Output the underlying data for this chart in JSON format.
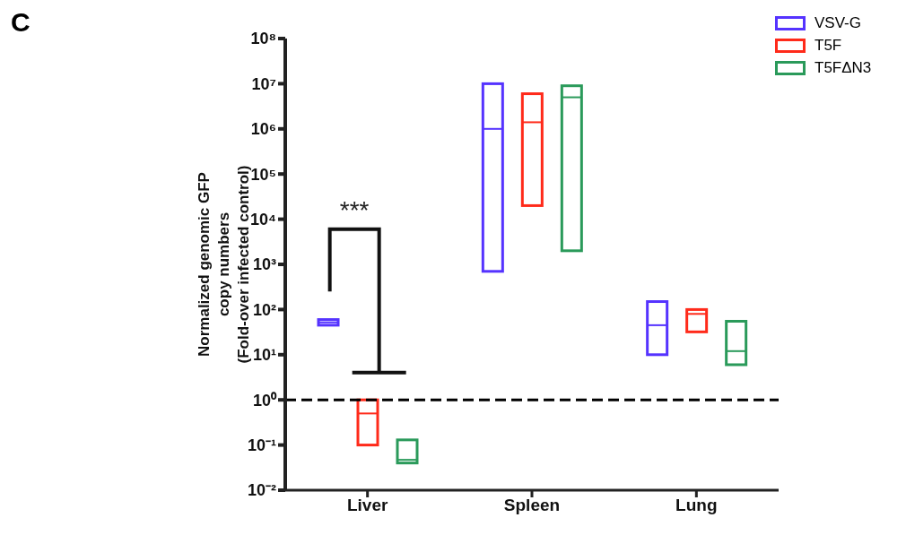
{
  "chart_data": {
    "type": "box",
    "title": "C",
    "ylabel": "Normalized genomic GFP\ncopy numbers\n(Fold-over infected control)",
    "categories": [
      "Liver",
      "Spleen",
      "Lung"
    ],
    "series": [
      {
        "name": "VSV-G",
        "color": "#5533ff",
        "boxes": [
          {
            "low": 45,
            "q1": 45,
            "median": 52,
            "q3": 60,
            "high": 60
          },
          {
            "low": 700,
            "q1": 700,
            "median": 1000000,
            "q3": 10000000,
            "high": 10000000
          },
          {
            "low": 10,
            "q1": 10,
            "median": 45,
            "q3": 150,
            "high": 150
          }
        ]
      },
      {
        "name": "T5F",
        "color": "#ff2a1a",
        "boxes": [
          {
            "low": 0.1,
            "q1": 0.1,
            "median": 0.5,
            "q3": 1,
            "high": 1
          },
          {
            "low": 20000,
            "q1": 20000,
            "median": 1400000,
            "q3": 6000000,
            "high": 6000000
          },
          {
            "low": 32,
            "q1": 32,
            "median": 80,
            "q3": 100,
            "high": 100
          }
        ]
      },
      {
        "name": "T5FΔN3",
        "color": "#2a9a5a",
        "boxes": [
          {
            "low": 0.04,
            "q1": 0.04,
            "median": 0.047,
            "q3": 0.13,
            "high": 0.13
          },
          {
            "low": 2000,
            "q1": 2000,
            "median": 5000000,
            "q3": 9000000,
            "high": 9000000
          },
          {
            "low": 6,
            "q1": 6,
            "median": 12,
            "q3": 55,
            "high": 55
          }
        ]
      }
    ],
    "log": true,
    "ylim": [
      0.01,
      100000000
    ],
    "yticks": [
      {
        "value": 0.01,
        "label": "10⁻²"
      },
      {
        "value": 0.1,
        "label": "10⁻¹"
      },
      {
        "value": 1,
        "label": "10⁰"
      },
      {
        "value": 10,
        "label": "10¹"
      },
      {
        "value": 100,
        "label": "10²"
      },
      {
        "value": 1000,
        "label": "10³"
      },
      {
        "value": 10000,
        "label": "10⁴"
      },
      {
        "value": 100000,
        "label": "10⁵"
      },
      {
        "value": 1000000,
        "label": "10⁶"
      },
      {
        "value": 10000000,
        "label": "10⁷"
      },
      {
        "value": 100000000,
        "label": "10⁸"
      }
    ],
    "ref_lines": [
      {
        "axis": "y",
        "value": 1,
        "color": "#000000",
        "line_style": "dashed"
      }
    ],
    "annotations": [
      "***"
    ],
    "legend": "top right"
  }
}
